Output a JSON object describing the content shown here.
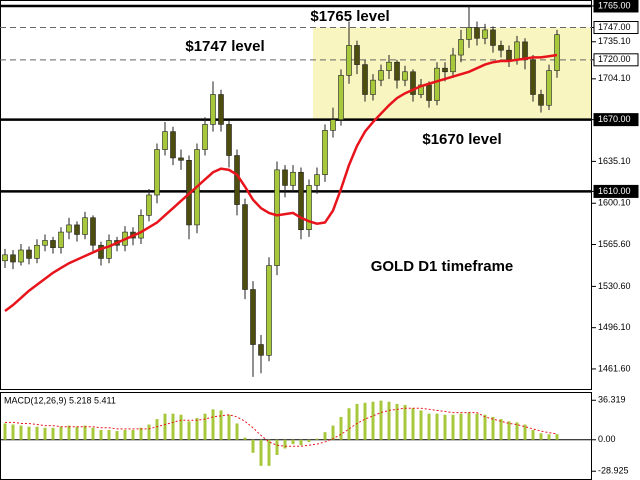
{
  "chart_data": {
    "type": "candlestick",
    "ylim": [
      1444,
      1770
    ],
    "yticks": [
      {
        "value": 1765,
        "label": "1765.00"
      },
      {
        "value": 1747,
        "label": "1747.00"
      },
      {
        "value": 1735.1,
        "label": "1735.10"
      },
      {
        "value": 1720,
        "label": "1720.00"
      },
      {
        "value": 1704.1,
        "label": "1704.10"
      },
      {
        "value": 1670,
        "label": "1670.00"
      },
      {
        "value": 1635.1,
        "label": "1635.10"
      },
      {
        "value": 1610,
        "label": "1610.00"
      },
      {
        "value": 1600.1,
        "label": "1600.10"
      },
      {
        "value": 1565.6,
        "label": "1565.60"
      },
      {
        "value": 1530.6,
        "label": "1530.60"
      },
      {
        "value": 1496.1,
        "label": "1496.10"
      },
      {
        "value": 1461.6,
        "label": "1461.60"
      }
    ],
    "levels": [
      {
        "value": 1765,
        "style": "solid"
      },
      {
        "value": 1747,
        "style": "dashed"
      },
      {
        "value": 1720,
        "style": "dashed"
      },
      {
        "value": 1670,
        "style": "solid"
      },
      {
        "value": 1610,
        "style": "solid"
      }
    ],
    "zone_color": "#f8f5c0",
    "annotations": [
      "$1765 level",
      "$1747 level",
      "$1670 level",
      "GOLD D1 timeframe"
    ],
    "bull_color": "#a8c83c",
    "bear_color": "#4d4d10",
    "candles": {
      "open": [
        1552,
        1557,
        1551,
        1561,
        1554,
        1565,
        1569,
        1563,
        1576,
        1582,
        1574,
        1588,
        1565,
        1554,
        1569,
        1565,
        1576,
        1571,
        1590,
        1607,
        1645,
        1660,
        1638,
        1636,
        1582,
        1645,
        1666,
        1691,
        1666,
        1640,
        1599,
        1528,
        1482,
        1473,
        1548,
        1628,
        1615,
        1626,
        1578,
        1615,
        1624,
        1661,
        1670,
        1707,
        1732,
        1716,
        1691,
        1703,
        1711,
        1718,
        1703,
        1710,
        1691,
        1699,
        1686,
        1713,
        1710,
        1724,
        1737,
        1747,
        1738,
        1745,
        1732,
        1728,
        1720,
        1735,
        1720,
        1691,
        1682,
        1711
      ],
      "high": [
        1562,
        1561,
        1566,
        1564,
        1570,
        1574,
        1572,
        1580,
        1588,
        1585,
        1593,
        1590,
        1568,
        1574,
        1572,
        1581,
        1580,
        1595,
        1612,
        1650,
        1668,
        1664,
        1645,
        1640,
        1650,
        1672,
        1702,
        1695,
        1670,
        1645,
        1604,
        1535,
        1490,
        1555,
        1635,
        1632,
        1632,
        1630,
        1620,
        1630,
        1666,
        1680,
        1712,
        1752,
        1736,
        1720,
        1708,
        1716,
        1724,
        1720,
        1715,
        1712,
        1704,
        1702,
        1718,
        1718,
        1730,
        1745,
        1765,
        1752,
        1750,
        1748,
        1736,
        1732,
        1740,
        1738,
        1724,
        1695,
        1716,
        1745
      ],
      "low": [
        1546,
        1545,
        1548,
        1549,
        1550,
        1560,
        1558,
        1558,
        1570,
        1568,
        1570,
        1560,
        1548,
        1550,
        1560,
        1560,
        1565,
        1566,
        1585,
        1600,
        1640,
        1632,
        1628,
        1570,
        1575,
        1640,
        1660,
        1660,
        1630,
        1590,
        1520,
        1455,
        1458,
        1468,
        1540,
        1605,
        1610,
        1570,
        1572,
        1608,
        1618,
        1655,
        1665,
        1700,
        1708,
        1685,
        1686,
        1698,
        1704,
        1696,
        1698,
        1685,
        1688,
        1680,
        1682,
        1702,
        1705,
        1718,
        1730,
        1732,
        1733,
        1726,
        1722,
        1714,
        1716,
        1712,
        1685,
        1676,
        1678,
        1705
      ],
      "close": [
        1557,
        1551,
        1561,
        1554,
        1565,
        1569,
        1563,
        1576,
        1582,
        1574,
        1588,
        1565,
        1554,
        1569,
        1565,
        1576,
        1571,
        1590,
        1607,
        1645,
        1660,
        1638,
        1636,
        1582,
        1645,
        1666,
        1691,
        1666,
        1640,
        1599,
        1528,
        1482,
        1473,
        1548,
        1628,
        1615,
        1626,
        1578,
        1615,
        1624,
        1661,
        1670,
        1707,
        1732,
        1716,
        1691,
        1703,
        1711,
        1718,
        1703,
        1710,
        1691,
        1699,
        1686,
        1713,
        1710,
        1724,
        1737,
        1747,
        1738,
        1745,
        1732,
        1728,
        1720,
        1735,
        1720,
        1691,
        1682,
        1711,
        1741
      ]
    },
    "ma": {
      "color": "#e8141c",
      "values": [
        1510,
        1515,
        1521,
        1527,
        1532,
        1537,
        1542,
        1546,
        1550,
        1553,
        1556,
        1559,
        1562,
        1564,
        1567,
        1570,
        1573,
        1576,
        1580,
        1584,
        1590,
        1596,
        1602,
        1608,
        1614,
        1620,
        1626,
        1629,
        1628,
        1624,
        1614,
        1603,
        1596,
        1592,
        1590,
        1591,
        1592,
        1588,
        1585,
        1583,
        1584,
        1594,
        1612,
        1632,
        1648,
        1660,
        1668,
        1675,
        1682,
        1688,
        1692,
        1695,
        1698,
        1700,
        1702,
        1704,
        1706,
        1708,
        1710,
        1713,
        1716,
        1718,
        1719,
        1719,
        1720,
        1721,
        1722,
        1722,
        1723,
        1724
      ]
    },
    "macd": {
      "label": "MACD(12,26,9) 5.218 5.411",
      "ylim": [
        -37,
        43
      ],
      "yticks": [
        36.319,
        {
          "value": 0,
          "label": "0.00"
        },
        -28.925
      ],
      "color": "#a8c83c",
      "signal_color": "#e8141c",
      "histogram": [
        15,
        14,
        13,
        12,
        12,
        11,
        11,
        12,
        13,
        12,
        13,
        11,
        9,
        9,
        8,
        9,
        9,
        11,
        14,
        19,
        24,
        24,
        23,
        17,
        20,
        24,
        28,
        27,
        23,
        15,
        2,
        -12,
        -24,
        -24,
        -14,
        -8,
        -4,
        -5,
        -2,
        1,
        7,
        13,
        21,
        29,
        33,
        34,
        35,
        36,
        35,
        33,
        32,
        29,
        27,
        24,
        24,
        23,
        23,
        24,
        25,
        24,
        23,
        21,
        19,
        17,
        16,
        14,
        9,
        6,
        5,
        5.218
      ],
      "signal": [
        16,
        16,
        15,
        15,
        14,
        13,
        13,
        12,
        12,
        12,
        12,
        12,
        11,
        11,
        10,
        10,
        10,
        10,
        10,
        12,
        14,
        16,
        18,
        18,
        18,
        19,
        21,
        22,
        23,
        21,
        17,
        11,
        4,
        -2,
        -5,
        -6,
        -6,
        -6,
        -5,
        -4,
        -2,
        1,
        5,
        10,
        15,
        19,
        22,
        25,
        27,
        28,
        29,
        29,
        29,
        28,
        27,
        26,
        25,
        25,
        25,
        25,
        21,
        19,
        17,
        15,
        14,
        12,
        10,
        8,
        6.5,
        5.411
      ]
    }
  }
}
